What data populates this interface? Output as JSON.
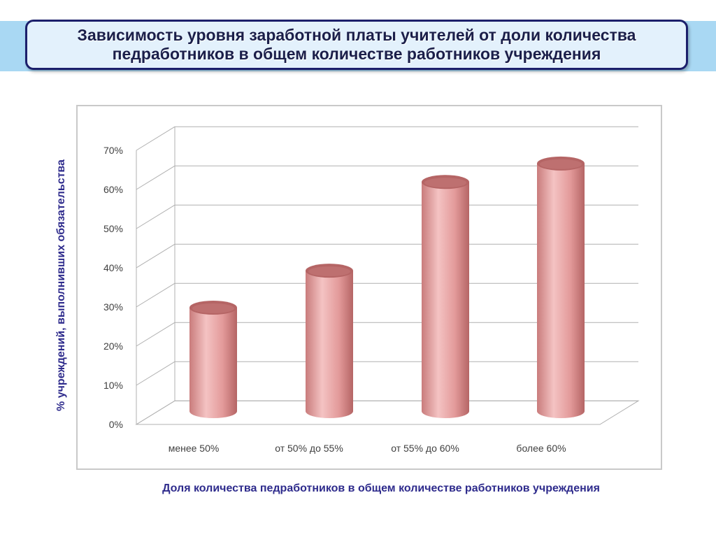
{
  "title": "Зависимость уровня заработной платы учителей от доли количества педработников в общем количестве работников учреждения",
  "chart_data": {
    "type": "bar",
    "categories": [
      "менее 50%",
      "от 50% до 55%",
      "от 55% до 60%",
      "более 60%"
    ],
    "values": [
      28,
      38,
      62,
      67
    ],
    "y_ticks": [
      "0%",
      "10%",
      "20%",
      "30%",
      "40%",
      "50%",
      "60%",
      "70%"
    ],
    "ylim": [
      0,
      70
    ],
    "ylabel": "% учреждений, выполнивших обязательства",
    "xlabel": "Доля количества педработников в общем количестве работников учреждения",
    "grid": true,
    "style": "3d-cylinder",
    "colors": {
      "bar": "#e39a9a",
      "bar_dark": "#b56565",
      "bar_light": "#f4c3c3",
      "grid": "#b0b0b0",
      "axis_text": "#404040"
    }
  }
}
